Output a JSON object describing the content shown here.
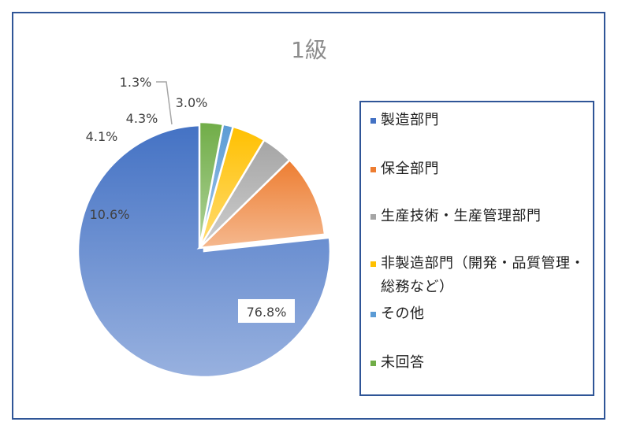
{
  "chart_data": {
    "type": "pie",
    "title": "1級",
    "categories": [
      "製造部門",
      "保全部門",
      "生産技術・生産管理部門",
      "非製造部門（開発・品質管理・総務など）",
      "その他",
      "未回答"
    ],
    "values": [
      76.8,
      10.6,
      4.1,
      4.3,
      1.3,
      3.0
    ],
    "data_labels": [
      "76.8%",
      "10.6%",
      "4.1%",
      "4.3%",
      "1.3%",
      "3.0%"
    ],
    "colors": [
      "#4472c4",
      "#ed7d31",
      "#a5a5a5",
      "#ffc000",
      "#5b9bd5",
      "#70ad47"
    ],
    "legend_position": "right",
    "grid": false
  }
}
